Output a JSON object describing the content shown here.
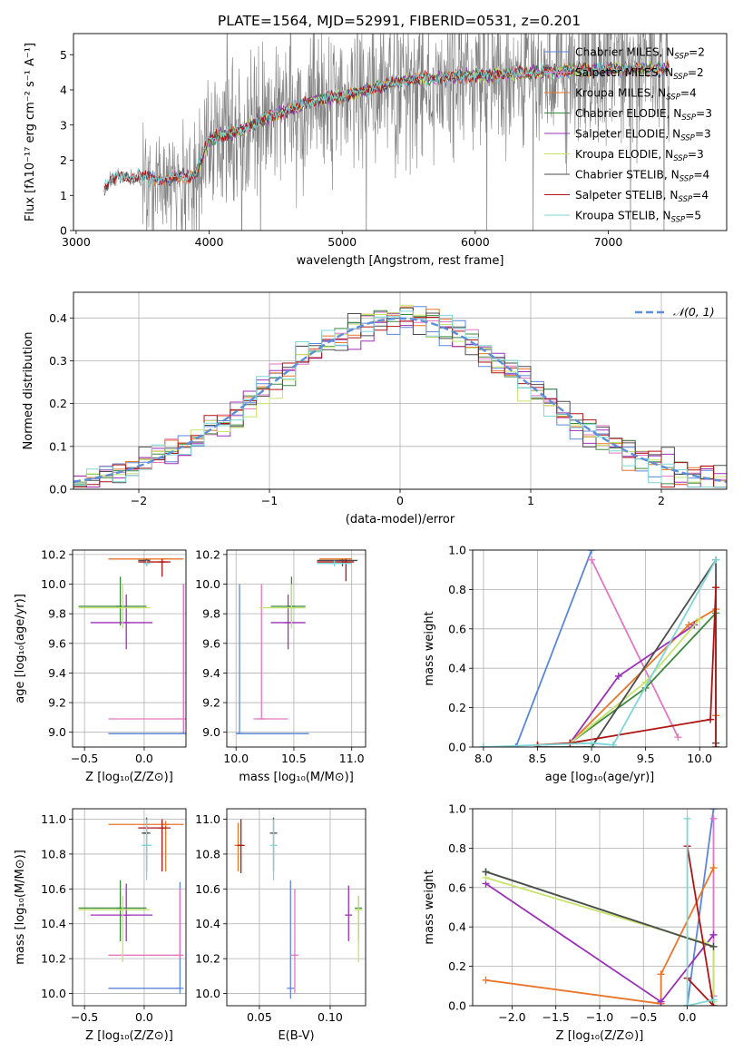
{
  "title": "PLATE=1564, MJD=52991, FIBERID=0531, z=0.201",
  "colors": {
    "chabrier_miles": "#5b86d9",
    "salpeter_miles": "#e377c2",
    "kroupa_miles": "#e8762b",
    "chabrier_elodie": "#3d8a3d",
    "salpeter_elodie": "#9b30b8",
    "kroupa_elodie": "#c6e36b",
    "chabrier_stelib": "#4d4d4d",
    "salpeter_stelib": "#b01414",
    "kroupa_stelib": "#7fd6d6",
    "data": "#808080",
    "gaussian": "#5b8fd9",
    "grid": "#b0b0b0"
  },
  "chart_data": [
    {
      "id": "spectrum",
      "type": "line",
      "xlabel": "wavelength [Angstrom, rest frame]",
      "ylabel": "Flux [fλ10⁻¹⁷ erg cm⁻² s⁻¹ A⁻¹]",
      "xlim": [
        2980,
        7890
      ],
      "ylim": [
        0,
        5.6
      ],
      "xticks": [
        3000,
        4000,
        5000,
        6000,
        7000
      ],
      "yticks": [
        0,
        1,
        2,
        3,
        4,
        5
      ],
      "grid": false,
      "legend_position": "top-right",
      "legend": [
        "Chabrier MILES, N_SSP=2",
        "Salpeter MILES, N_SSP=2",
        "Kroupa MILES, N_SSP=4",
        "Chabrier ELODIE, N_SSP=3",
        "Salpeter ELODIE, N_SSP=3",
        "Kroupa ELODIE, N_SSP=3",
        "Chabrier STELIB, N_SSP=4",
        "Salpeter STELIB, N_SSP=4",
        "Kroupa STELIB, N_SSP=5"
      ],
      "data_range": [
        3210,
        7460
      ],
      "continuum_anchors": [
        [
          3210,
          1.2
        ],
        [
          3300,
          1.55
        ],
        [
          3500,
          1.5
        ],
        [
          3700,
          1.45
        ],
        [
          3900,
          1.6
        ],
        [
          4000,
          2.6
        ],
        [
          4200,
          2.8
        ],
        [
          4500,
          3.3
        ],
        [
          4800,
          3.7
        ],
        [
          5100,
          3.9
        ],
        [
          5500,
          4.3
        ],
        [
          6000,
          4.4
        ],
        [
          6500,
          4.5
        ],
        [
          7000,
          4.6
        ],
        [
          7460,
          4.6
        ]
      ]
    },
    {
      "id": "residuals",
      "type": "histogram",
      "xlabel": "(data-model)/error",
      "ylabel": "Normed distribution",
      "xlim": [
        -2.5,
        2.5
      ],
      "ylim": [
        0,
        0.46
      ],
      "xticks": [
        -2,
        -1,
        0,
        1,
        2
      ],
      "yticks": [
        0.0,
        0.1,
        0.2,
        0.3,
        0.4
      ],
      "grid": true,
      "legend": [
        "𝒩(0, 1)"
      ],
      "legend_position": "top-right",
      "bin_width": 0.1
    },
    {
      "id": "age_vs_Z",
      "type": "scatter",
      "xlabel": "Z [log₁₀(Z/Z⊙)]",
      "ylabel": "age  [log₁₀(age/yr)]",
      "xlim": [
        -0.6,
        0.35
      ],
      "ylim": [
        8.9,
        10.23
      ],
      "xticks": [
        -0.5,
        0.0
      ],
      "yticks": [
        9.0,
        9.2,
        9.4,
        9.6,
        9.8,
        10.0,
        10.2
      ],
      "grid": true,
      "points": [
        {
          "key": "chabrier_miles",
          "x": 0.33,
          "y": 8.99,
          "xlo": -0.3,
          "xhi": 0.33,
          "ylo": 8.99,
          "yhi": 10.0
        },
        {
          "key": "salpeter_miles",
          "x": 0.33,
          "y": 9.09,
          "xlo": -0.3,
          "xhi": 0.3,
          "ylo": 9.0,
          "yhi": 10.0
        },
        {
          "key": "kroupa_miles",
          "x": 0.18,
          "y": 10.17,
          "xlo": -0.3,
          "xhi": 0.33,
          "ylo": 10.17,
          "yhi": 10.17
        },
        {
          "key": "chabrier_elodie",
          "x": -0.2,
          "y": 9.85,
          "xlo": -0.55,
          "xhi": 0.02,
          "ylo": 9.72,
          "yhi": 10.05
        },
        {
          "key": "salpeter_elodie",
          "x": -0.15,
          "y": 9.74,
          "xlo": -0.45,
          "xhi": 0.07,
          "ylo": 9.56,
          "yhi": 9.93
        },
        {
          "key": "kroupa_elodie",
          "x": -0.18,
          "y": 9.84,
          "xlo": -0.55,
          "xhi": 0.05,
          "ylo": 9.7,
          "yhi": 10.0
        },
        {
          "key": "chabrier_stelib",
          "x": 0.02,
          "y": 10.16,
          "xlo": -0.05,
          "xhi": 0.05,
          "ylo": 10.12,
          "yhi": 10.17
        },
        {
          "key": "salpeter_stelib",
          "x": 0.15,
          "y": 10.15,
          "xlo": -0.05,
          "xhi": 0.22,
          "ylo": 10.05,
          "yhi": 10.17
        },
        {
          "key": "kroupa_stelib",
          "x": 0.02,
          "y": 10.14,
          "xlo": 0.0,
          "xhi": 0.05,
          "ylo": 10.12,
          "yhi": 10.16
        }
      ]
    },
    {
      "id": "age_vs_mass",
      "type": "scatter",
      "xlabel": "mass [log₁₀(M/M⊙)]",
      "ylabel": "",
      "xlim": [
        9.92,
        11.12
      ],
      "ylim": [
        8.9,
        10.23
      ],
      "xticks": [
        10.0,
        10.5,
        11.0
      ],
      "yticks": [
        9.0,
        9.2,
        9.4,
        9.6,
        9.8,
        10.0,
        10.2
      ],
      "grid": true,
      "points": [
        {
          "key": "chabrier_miles",
          "x": 10.03,
          "y": 8.99,
          "xlo": 10.0,
          "xhi": 10.63,
          "ylo": 8.99,
          "yhi": 10.0
        },
        {
          "key": "salpeter_miles",
          "x": 10.22,
          "y": 9.09,
          "xlo": 10.15,
          "xhi": 10.45,
          "ylo": 9.09,
          "yhi": 10.0
        },
        {
          "key": "kroupa_miles",
          "x": 10.97,
          "y": 10.17,
          "xlo": 10.72,
          "xhi": 11.0,
          "ylo": 10.17,
          "yhi": 10.17
        },
        {
          "key": "chabrier_elodie",
          "x": 10.48,
          "y": 9.85,
          "xlo": 10.3,
          "xhi": 10.6,
          "ylo": 9.72,
          "yhi": 10.05
        },
        {
          "key": "salpeter_elodie",
          "x": 10.45,
          "y": 9.74,
          "xlo": 10.3,
          "xhi": 10.6,
          "ylo": 9.56,
          "yhi": 9.93
        },
        {
          "key": "kroupa_elodie",
          "x": 10.48,
          "y": 9.84,
          "xlo": 10.2,
          "xhi": 10.6,
          "ylo": 9.7,
          "yhi": 10.0
        },
        {
          "key": "chabrier_stelib",
          "x": 10.92,
          "y": 10.16,
          "xlo": 10.7,
          "xhi": 11.05,
          "ylo": 10.12,
          "yhi": 10.17
        },
        {
          "key": "salpeter_stelib",
          "x": 10.95,
          "y": 10.15,
          "xlo": 10.7,
          "xhi": 11.02,
          "ylo": 10.02,
          "yhi": 10.17
        },
        {
          "key": "kroupa_stelib",
          "x": 10.85,
          "y": 10.14,
          "xlo": 10.7,
          "xhi": 11.0,
          "ylo": 10.12,
          "yhi": 10.16
        }
      ]
    },
    {
      "id": "weight_vs_age",
      "type": "line",
      "xlabel": "age  [log₁₀(age/yr)]",
      "ylabel": "mass weight",
      "xlim": [
        7.9,
        10.25
      ],
      "ylim": [
        0,
        1.0
      ],
      "xticks": [
        8.0,
        8.5,
        9.0,
        9.5,
        10.0
      ],
      "yticks": [
        0.0,
        0.2,
        0.4,
        0.6,
        0.8,
        1.0
      ],
      "grid": true,
      "series": [
        {
          "key": "chabrier_miles",
          "points": [
            [
              8.0,
              0.0
            ],
            [
              8.3,
              0.0
            ],
            [
              9.0,
              1.0
            ]
          ]
        },
        {
          "key": "salpeter_miles",
          "points": [
            [
              9.0,
              0.95
            ],
            [
              9.8,
              0.05
            ]
          ]
        },
        {
          "key": "kroupa_miles",
          "points": [
            [
              8.5,
              0.01
            ],
            [
              8.8,
              0.02
            ],
            [
              9.9,
              0.62
            ],
            [
              10.15,
              0.7
            ],
            [
              10.15,
              0.16
            ]
          ]
        },
        {
          "key": "chabrier_elodie",
          "points": [
            [
              8.8,
              0.02
            ],
            [
              9.5,
              0.3
            ],
            [
              10.15,
              0.68
            ]
          ]
        },
        {
          "key": "salpeter_elodie",
          "points": [
            [
              8.8,
              0.02
            ],
            [
              9.25,
              0.36
            ],
            [
              9.95,
              0.62
            ]
          ]
        },
        {
          "key": "kroupa_elodie",
          "points": [
            [
              8.8,
              0.02
            ],
            [
              9.5,
              0.33
            ],
            [
              10.0,
              0.65
            ]
          ]
        },
        {
          "key": "chabrier_stelib",
          "points": [
            [
              8.5,
              0.0
            ],
            [
              9.0,
              0.0
            ],
            [
              10.15,
              0.95
            ],
            [
              10.15,
              0.02
            ]
          ]
        },
        {
          "key": "salpeter_stelib",
          "points": [
            [
              8.5,
              0.01
            ],
            [
              8.8,
              0.02
            ],
            [
              10.1,
              0.14
            ],
            [
              10.15,
              0.81
            ],
            [
              10.15,
              0.0
            ]
          ]
        },
        {
          "key": "kroupa_stelib",
          "points": [
            [
              8.0,
              0.0
            ],
            [
              9.0,
              0.02
            ],
            [
              9.2,
              0.01
            ],
            [
              10.15,
              0.95
            ]
          ]
        }
      ]
    },
    {
      "id": "mass_vs_Z",
      "type": "scatter",
      "xlabel": "Z [log₁₀(Z/Z⊙)]",
      "ylabel": "mass [log₁₀(M/M⊙)]",
      "xlim": [
        -0.6,
        0.35
      ],
      "ylim": [
        9.93,
        11.06
      ],
      "xticks": [
        -0.5,
        0.0
      ],
      "yticks": [
        10.0,
        10.2,
        10.4,
        10.6,
        10.8,
        11.0
      ],
      "grid": true,
      "points": [
        {
          "key": "chabrier_miles",
          "x": 0.3,
          "y": 10.03,
          "xlo": -0.3,
          "xhi": 0.3,
          "ylo": 10.0,
          "yhi": 10.64
        },
        {
          "key": "salpeter_miles",
          "x": 0.3,
          "y": 10.22,
          "xlo": -0.3,
          "xhi": 0.3,
          "ylo": 10.2,
          "yhi": 10.6
        },
        {
          "key": "kroupa_miles",
          "x": 0.18,
          "y": 10.97,
          "xlo": -0.3,
          "xhi": 0.33,
          "ylo": 10.7,
          "yhi": 10.99
        },
        {
          "key": "chabrier_elodie",
          "x": -0.2,
          "y": 10.49,
          "xlo": -0.55,
          "xhi": 0.02,
          "ylo": 10.3,
          "yhi": 10.65
        },
        {
          "key": "salpeter_elodie",
          "x": -0.15,
          "y": 10.45,
          "xlo": -0.45,
          "xhi": 0.07,
          "ylo": 10.3,
          "yhi": 10.63
        },
        {
          "key": "kroupa_elodie",
          "x": -0.18,
          "y": 10.48,
          "xlo": -0.55,
          "xhi": 0.05,
          "ylo": 10.18,
          "yhi": 10.56
        },
        {
          "key": "chabrier_stelib",
          "x": 0.02,
          "y": 10.92,
          "xlo": -0.02,
          "xhi": 0.05,
          "ylo": 10.7,
          "yhi": 11.01
        },
        {
          "key": "salpeter_stelib",
          "x": 0.15,
          "y": 10.95,
          "xlo": -0.05,
          "xhi": 0.22,
          "ylo": 10.7,
          "yhi": 11.0
        },
        {
          "key": "kroupa_stelib",
          "x": 0.02,
          "y": 10.85,
          "xlo": -0.02,
          "xhi": 0.06,
          "ylo": 10.65,
          "yhi": 11.0
        }
      ]
    },
    {
      "id": "mass_vs_EBV",
      "type": "scatter",
      "xlabel": "E(B-V)",
      "ylabel": "",
      "xlim": [
        0.027,
        0.125
      ],
      "ylim": [
        9.93,
        11.06
      ],
      "xticks": [
        0.05,
        0.1
      ],
      "yticks": [
        10.0,
        10.2,
        10.4,
        10.6,
        10.8,
        11.0
      ],
      "grid": true,
      "points": [
        {
          "key": "chabrier_miles",
          "x": 0.072,
          "y": 10.03,
          "ylo": 9.97,
          "yhi": 10.65
        },
        {
          "key": "salpeter_miles",
          "x": 0.075,
          "y": 10.22,
          "ylo": 10.0,
          "yhi": 10.6
        },
        {
          "key": "kroupa_miles",
          "x": 0.035,
          "y": 10.85,
          "ylo": 10.7,
          "yhi": 10.98
        },
        {
          "key": "chabrier_elodie",
          "x": 0.12,
          "y": 10.49,
          "ylo": 10.3,
          "yhi": 10.56
        },
        {
          "key": "salpeter_elodie",
          "x": 0.113,
          "y": 10.45,
          "ylo": 10.3,
          "yhi": 10.62
        },
        {
          "key": "kroupa_elodie",
          "x": 0.12,
          "y": 10.48,
          "ylo": 10.18,
          "yhi": 10.56
        },
        {
          "key": "chabrier_stelib",
          "x": 0.06,
          "y": 10.92,
          "ylo": 10.7,
          "yhi": 11.01
        },
        {
          "key": "salpeter_stelib",
          "x": 0.037,
          "y": 10.85,
          "ylo": 10.69,
          "yhi": 11.0
        },
        {
          "key": "kroupa_stelib",
          "x": 0.06,
          "y": 10.85,
          "ylo": 10.65,
          "yhi": 11.0
        }
      ]
    },
    {
      "id": "weight_vs_Z",
      "type": "line",
      "xlabel": "Z [log₁₀(Z/Z⊙)]",
      "ylabel": "mass weight",
      "xlim": [
        -2.45,
        0.45
      ],
      "ylim": [
        0,
        1.0
      ],
      "xticks": [
        -2.0,
        -1.5,
        -1.0,
        -0.5,
        0.0
      ],
      "yticks": [
        0.0,
        0.2,
        0.4,
        0.6,
        0.8,
        1.0
      ],
      "grid": true,
      "series": [
        {
          "key": "chabrier_miles",
          "points": [
            [
              0.0,
              0.0
            ],
            [
              0.3,
              1.0
            ]
          ]
        },
        {
          "key": "salpeter_miles",
          "points": [
            [
              0.3,
              0.05
            ],
            [
              0.3,
              0.95
            ]
          ]
        },
        {
          "key": "kroupa_miles",
          "points": [
            [
              -2.3,
              0.13
            ],
            [
              -0.3,
              0.01
            ],
            [
              -0.3,
              0.16
            ],
            [
              0.3,
              0.7
            ]
          ]
        },
        {
          "key": "chabrier_elodie",
          "points": [
            [
              -2.3,
              0.68
            ],
            [
              0.3,
              0.3
            ]
          ]
        },
        {
          "key": "salpeter_elodie",
          "points": [
            [
              -2.3,
              0.62
            ],
            [
              -0.3,
              0.02
            ],
            [
              0.3,
              0.36
            ]
          ]
        },
        {
          "key": "kroupa_elodie",
          "points": [
            [
              -2.3,
              0.65
            ],
            [
              0.2,
              0.32
            ],
            [
              0.3,
              0.3
            ],
            [
              0.3,
              0.02
            ]
          ]
        },
        {
          "key": "chabrier_stelib",
          "points": [
            [
              -2.3,
              0.68
            ],
            [
              0.3,
              0.3
            ]
          ]
        },
        {
          "key": "salpeter_stelib",
          "points": [
            [
              0.0,
              0.14
            ],
            [
              0.3,
              0.0
            ],
            [
              0.0,
              0.81
            ]
          ]
        },
        {
          "key": "kroupa_stelib",
          "points": [
            [
              0.0,
              0.95
            ],
            [
              0.0,
              0.0
            ],
            [
              0.3,
              0.03
            ]
          ]
        }
      ]
    }
  ]
}
